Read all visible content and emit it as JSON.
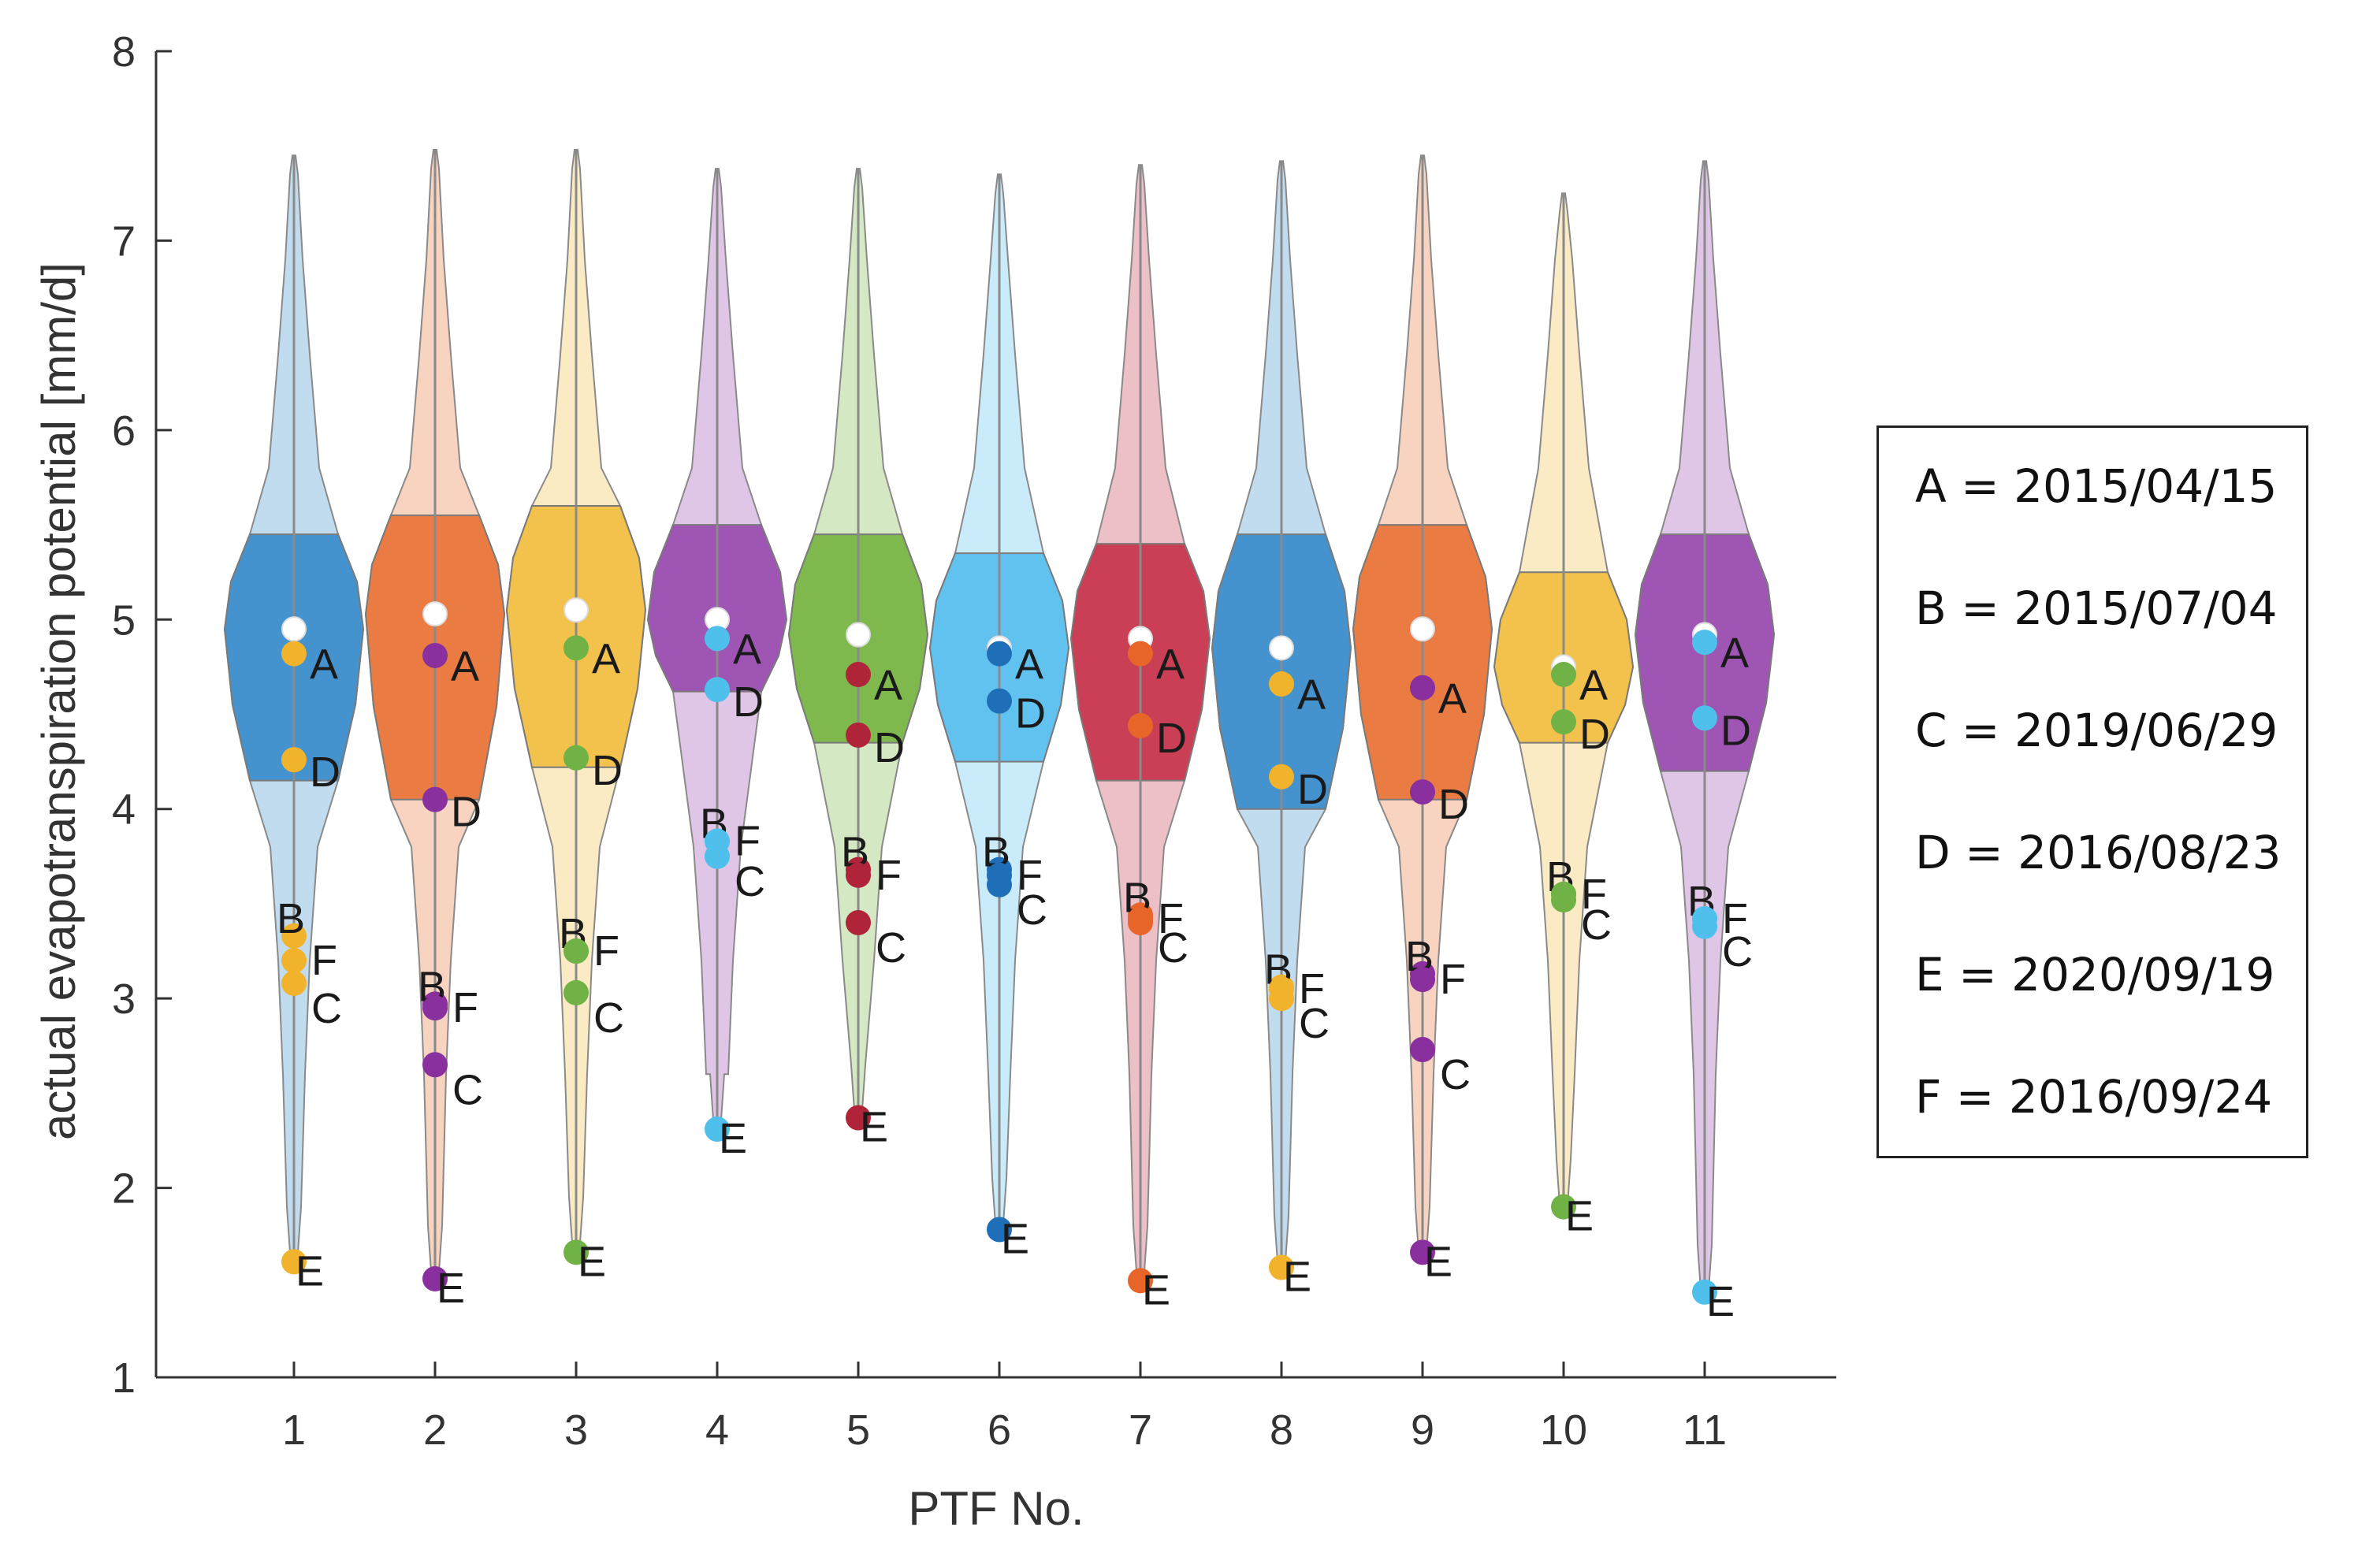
{
  "chart_data": {
    "type": "violin",
    "xlabel": "PTF No.",
    "ylabel": "actual evapotranspiration potential [mm/d]",
    "ylim": [
      1,
      8
    ],
    "yticks": [
      1,
      2,
      3,
      4,
      5,
      6,
      7,
      8
    ],
    "categories": [
      "1",
      "2",
      "3",
      "4",
      "5",
      "6",
      "7",
      "8",
      "9",
      "10",
      "11"
    ],
    "legend_position": "right",
    "legend": [
      {
        "key": "A",
        "text": "A = 2015/04/15"
      },
      {
        "key": "B",
        "text": "B = 2015/07/04"
      },
      {
        "key": "C",
        "text": "C = 2019/06/29"
      },
      {
        "key": "D",
        "text": "D = 2016/08/23"
      },
      {
        "key": "E",
        "text": "E = 2020/09/19"
      },
      {
        "key": "F",
        "text": "F = 2016/09/24"
      }
    ],
    "series": [
      {
        "ptf": "1",
        "violin_color": "#3d8fcc",
        "point_color": "#f2b32c",
        "median": 4.95,
        "q1": 4.15,
        "q3": 5.45,
        "min": 1.6,
        "max": 7.45,
        "points": {
          "A": 4.82,
          "B": 3.33,
          "C": 3.08,
          "D": 4.26,
          "E": 1.61,
          "F": 3.2
        }
      },
      {
        "ptf": "2",
        "violin_color": "#e8763c",
        "point_color": "#8a2f9e",
        "median": 5.03,
        "q1": 4.05,
        "q3": 5.55,
        "min": 1.5,
        "max": 7.48,
        "points": {
          "A": 4.81,
          "B": 2.97,
          "C": 2.65,
          "D": 4.05,
          "E": 1.52,
          "F": 2.95
        }
      },
      {
        "ptf": "3",
        "violin_color": "#f2c047",
        "point_color": "#71b247",
        "median": 5.05,
        "q1": 4.22,
        "q3": 5.6,
        "min": 1.65,
        "max": 7.48,
        "points": {
          "A": 4.85,
          "B": 3.25,
          "C": 3.03,
          "D": 4.27,
          "E": 1.66,
          "F": 3.25
        }
      },
      {
        "ptf": "4",
        "violin_color": "#9b4fb0",
        "point_color": "#4fc0ec",
        "median": 5.0,
        "q1": 4.62,
        "q3": 5.5,
        "min": 2.3,
        "max": 7.38,
        "points": {
          "A": 4.9,
          "B": 3.83,
          "C": 3.75,
          "D": 4.63,
          "E": 2.31,
          "F": 3.83
        }
      },
      {
        "ptf": "5",
        "violin_color": "#7ab648",
        "point_color": "#b0243a",
        "median": 4.92,
        "q1": 4.35,
        "q3": 5.45,
        "min": 2.35,
        "max": 7.38,
        "points": {
          "A": 4.71,
          "B": 3.68,
          "C": 3.4,
          "D": 4.39,
          "E": 2.37,
          "F": 3.65
        }
      },
      {
        "ptf": "6",
        "violin_color": "#5bc0ef",
        "point_color": "#1f6fb8",
        "median": 4.85,
        "q1": 4.25,
        "q3": 5.35,
        "min": 1.75,
        "max": 7.35,
        "points": {
          "A": 4.82,
          "B": 3.68,
          "C": 3.6,
          "D": 4.57,
          "E": 1.78,
          "F": 3.65
        }
      },
      {
        "ptf": "7",
        "violin_color": "#c8384f",
        "point_color": "#e8652a",
        "median": 4.9,
        "q1": 4.15,
        "q3": 5.4,
        "min": 1.5,
        "max": 7.4,
        "points": {
          "A": 4.82,
          "B": 3.44,
          "C": 3.4,
          "D": 4.44,
          "E": 1.51,
          "F": 3.42
        }
      },
      {
        "ptf": "8",
        "violin_color": "#3d8fcc",
        "point_color": "#f2b32c",
        "median": 4.85,
        "q1": 4.0,
        "q3": 5.45,
        "min": 1.55,
        "max": 7.42,
        "points": {
          "A": 4.66,
          "B": 3.06,
          "C": 3.0,
          "D": 4.17,
          "E": 1.58,
          "F": 3.05
        }
      },
      {
        "ptf": "9",
        "violin_color": "#e8763c",
        "point_color": "#8a2f9e",
        "median": 4.95,
        "q1": 4.05,
        "q3": 5.5,
        "min": 1.6,
        "max": 7.45,
        "points": {
          "A": 4.64,
          "B": 3.13,
          "C": 2.73,
          "D": 4.09,
          "E": 1.66,
          "F": 3.1
        }
      },
      {
        "ptf": "10",
        "violin_color": "#f2c047",
        "point_color": "#71b247",
        "median": 4.75,
        "q1": 4.35,
        "q3": 5.25,
        "min": 1.85,
        "max": 7.25,
        "points": {
          "A": 4.71,
          "B": 3.55,
          "C": 3.52,
          "D": 4.46,
          "E": 1.9,
          "F": 3.55
        }
      },
      {
        "ptf": "11",
        "violin_color": "#9b4fb0",
        "point_color": "#4fc0ec",
        "median": 4.92,
        "q1": 4.2,
        "q3": 5.45,
        "min": 1.4,
        "max": 7.42,
        "points": {
          "A": 4.88,
          "B": 3.42,
          "C": 3.38,
          "D": 4.48,
          "E": 1.45,
          "F": 3.42
        }
      }
    ]
  }
}
